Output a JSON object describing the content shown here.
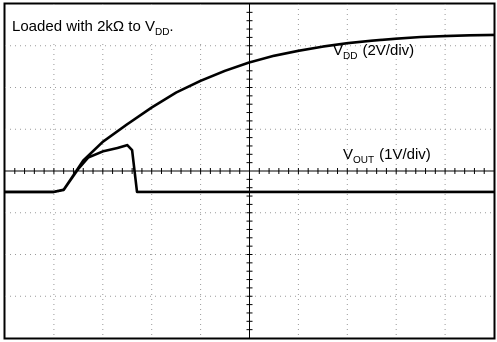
{
  "chart_data": {
    "type": "line",
    "annotation": {
      "prefix": "Loaded with 2kΩ to V",
      "sub": "DD",
      "suffix": "."
    },
    "series": [
      {
        "name_main": "V",
        "name_sub": "DD",
        "scale": "(2V/div)",
        "x": [
          0,
          0.5,
          1.0,
          1.2,
          1.6,
          2.0,
          2.5,
          3.0,
          3.5,
          4.0,
          4.5,
          5.0,
          5.5,
          6.0,
          6.5,
          7.0,
          7.5,
          8.0,
          8.5,
          9.0,
          9.5,
          10.0
        ],
        "y": [
          0,
          0,
          0,
          0.05,
          0.75,
          1.2,
          1.62,
          2.02,
          2.38,
          2.66,
          2.9,
          3.1,
          3.26,
          3.38,
          3.48,
          3.56,
          3.62,
          3.67,
          3.71,
          3.73,
          3.75,
          3.76
        ]
      },
      {
        "name_main": "V",
        "name_sub": "OUT",
        "scale": "(1V/div)",
        "x": [
          0,
          0.5,
          1.0,
          1.2,
          1.5,
          1.7,
          2.0,
          2.3,
          2.5,
          2.6,
          2.7,
          3.0,
          4.0,
          5.0,
          6.0,
          7.0,
          8.0,
          9.0,
          10.0
        ],
        "y": [
          0,
          0,
          0,
          0.05,
          0.55,
          0.82,
          0.97,
          1.05,
          1.12,
          1.0,
          0,
          0,
          0,
          0,
          0,
          0,
          0,
          0,
          0
        ]
      }
    ],
    "x_divisions": 10,
    "y_divisions": 8,
    "baseline_division": 4.5,
    "grid": true,
    "colors": {
      "trace": "#000000",
      "grid": "#9a9a9a",
      "background": "#ffffff"
    }
  }
}
